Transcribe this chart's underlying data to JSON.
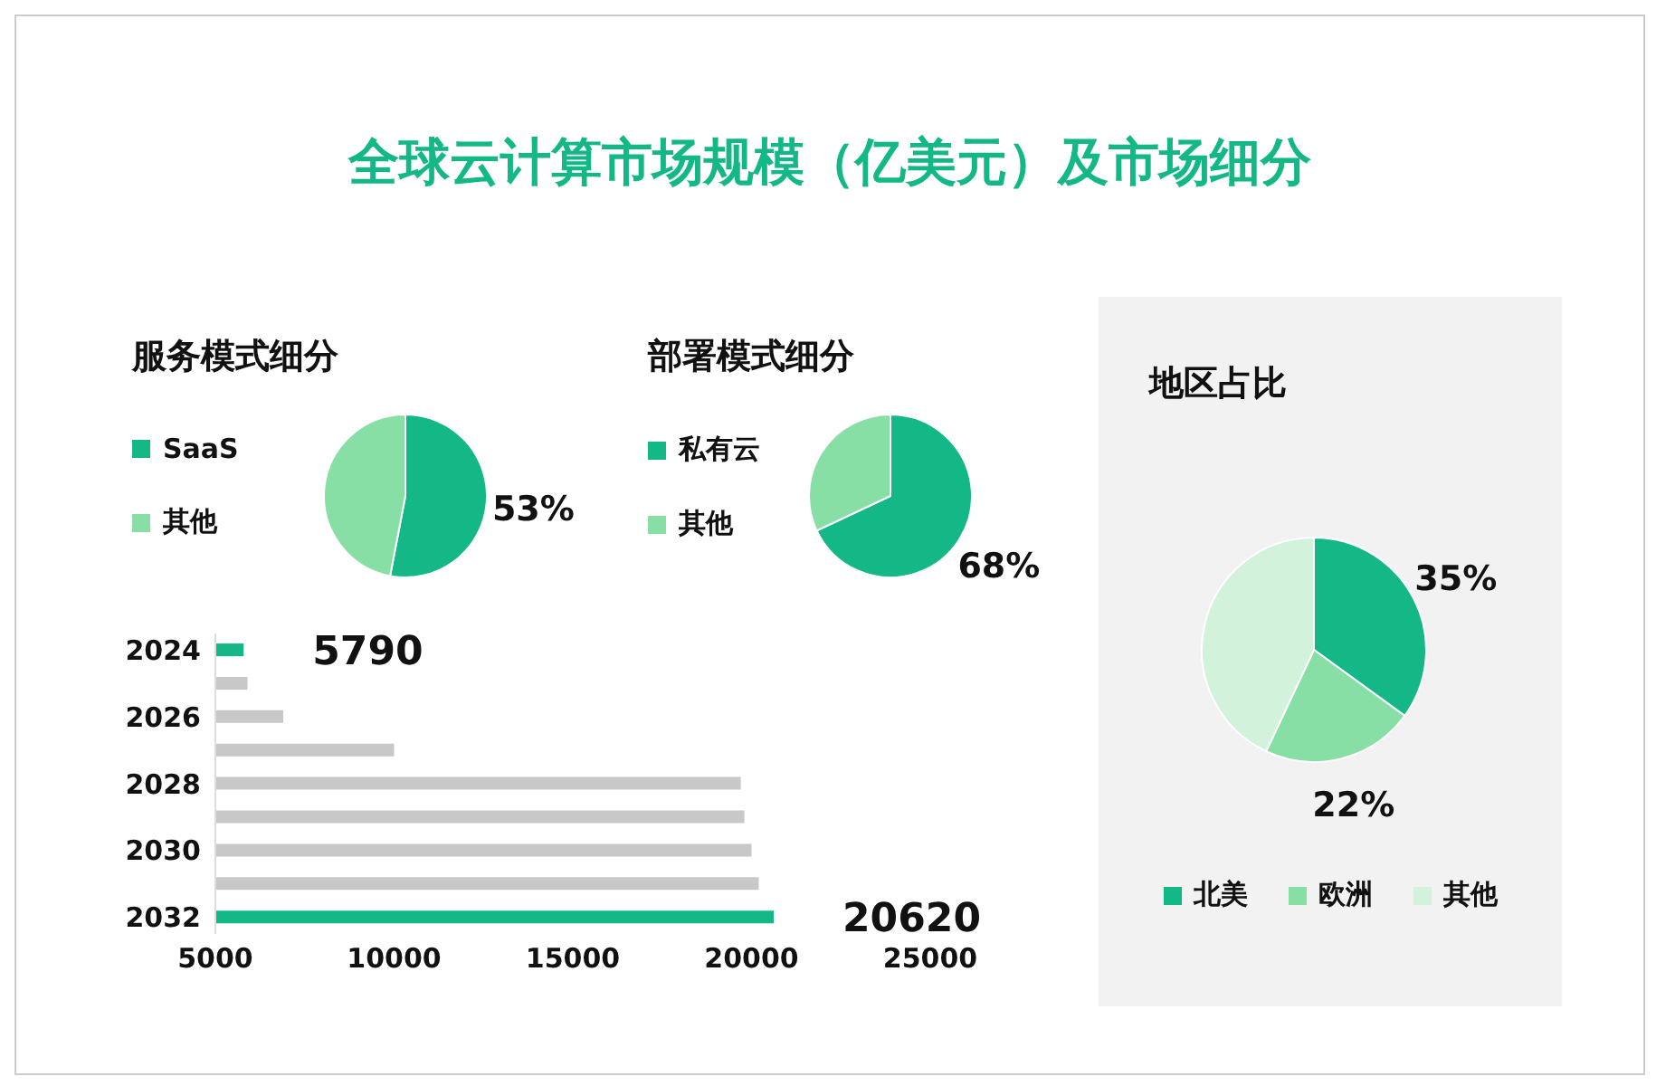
{
  "chart_data": [
    {
      "type": "bar",
      "orientation": "horizontal",
      "title": "全球云计算市场规模（亿美元）及市场细分",
      "categories": [
        "2024",
        null,
        "2026",
        null,
        "2028",
        null,
        "2030",
        null,
        "2032"
      ],
      "values": [
        5790,
        5900,
        6900,
        10000,
        19700,
        19800,
        20000,
        20200,
        20620
      ],
      "colors": [
        "#13b886",
        "#c8c8c8",
        "#c8c8c8",
        "#c8c8c8",
        "#c8c8c8",
        "#c8c8c8",
        "#c8c8c8",
        "#c8c8c8",
        "#13b886"
      ],
      "value_labels": [
        "5790",
        null,
        null,
        null,
        null,
        null,
        null,
        null,
        "20620"
      ],
      "xlim": [
        5000,
        25000
      ],
      "xticks": [
        5000,
        10000,
        15000,
        20000,
        25000
      ],
      "legend": false
    },
    {
      "type": "pie",
      "title": "服务模式细分",
      "categories": [
        "SaaS",
        "其他"
      ],
      "values": [
        53,
        47
      ],
      "colors": [
        "#13b886",
        "#88dfa6"
      ],
      "value_labels": [
        "53%",
        null
      ],
      "legend": "left"
    },
    {
      "type": "pie",
      "title": "部署模式细分",
      "categories": [
        "私有云",
        "其他"
      ],
      "values": [
        68,
        32
      ],
      "colors": [
        "#13b886",
        "#88dfa6"
      ],
      "value_labels": [
        "68%",
        null
      ],
      "legend": "left"
    },
    {
      "type": "pie",
      "title": "地区占比",
      "categories": [
        "北美",
        "欧洲",
        "其他"
      ],
      "values": [
        35,
        22,
        43
      ],
      "colors": [
        "#13b886",
        "#88dfa6",
        "#d2f2dc"
      ],
      "value_labels": [
        "35%",
        "22%",
        null
      ],
      "legend": "bottom"
    }
  ]
}
